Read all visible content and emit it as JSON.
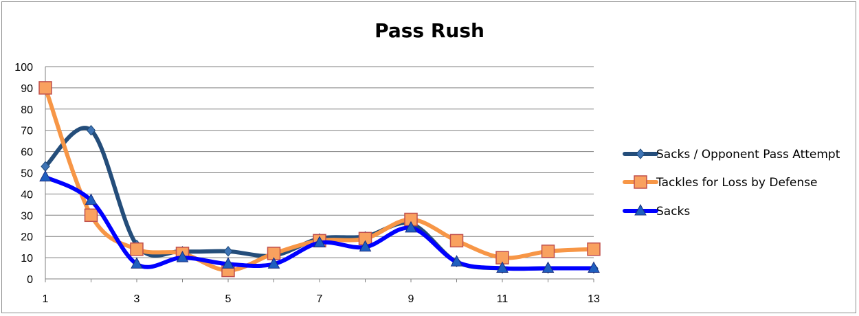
{
  "chart_data": {
    "type": "line",
    "title": "Pass Rush",
    "xlabel": "",
    "ylabel": "",
    "x": [
      1,
      2,
      3,
      4,
      5,
      6,
      7,
      8,
      9,
      10,
      11,
      12,
      13
    ],
    "x_tick_labels": [
      "1",
      "3",
      "5",
      "7",
      "9",
      "11",
      "13"
    ],
    "x_tick_values": [
      1,
      3,
      5,
      7,
      9,
      11,
      13
    ],
    "y_tick_labels": [
      "0",
      "10",
      "20",
      "30",
      "40",
      "50",
      "60",
      "70",
      "80",
      "90",
      "100"
    ],
    "ylim": [
      0,
      100
    ],
    "grid": true,
    "legend_position": "right",
    "series": [
      {
        "name": "Sacks / Opponent Pass Attempt",
        "color": "#244d7a",
        "marker": "diamond",
        "values": [
          53,
          70,
          16,
          13,
          13,
          11,
          19,
          20,
          26,
          8,
          5,
          5,
          5
        ]
      },
      {
        "name": "Tackles for Loss by Defense",
        "color": "#f79646",
        "marker": "square",
        "values": [
          90,
          30,
          14,
          12,
          4,
          12,
          18,
          19,
          28,
          18,
          10,
          13,
          14
        ]
      },
      {
        "name": "Sacks",
        "color": "#0000ff",
        "marker": "triangle",
        "values": [
          48,
          37,
          7,
          10,
          7,
          7,
          17,
          15,
          24,
          8,
          5,
          5,
          5
        ]
      }
    ]
  }
}
